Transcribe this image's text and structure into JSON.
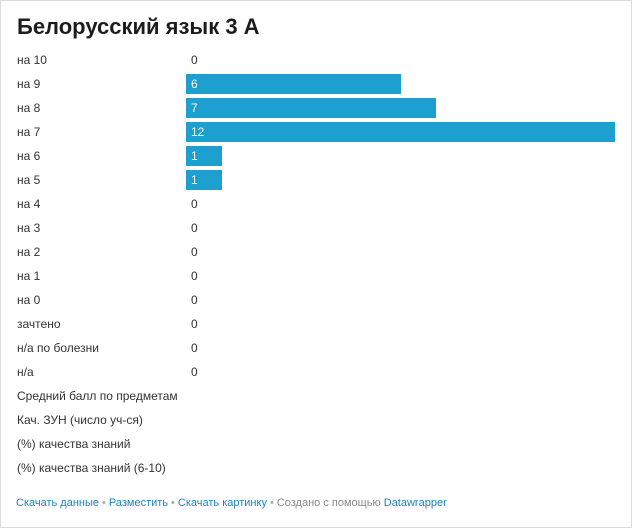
{
  "chart_data": {
    "type": "bar",
    "orientation": "horizontal",
    "title": "Белорусский язык 3 А",
    "categories": [
      "на 10",
      "на 9",
      "на 8",
      "на 7",
      "на 6",
      "на 5",
      "на 4",
      "на 3",
      "на 2",
      "на 1",
      "на 0",
      "зачтено",
      "н/а по болезни",
      "н/а",
      "Средний балл по предметам",
      "Кач. ЗУН (число уч-ся)",
      "(%) качества знаний",
      "(%) качества знаний (6-10)"
    ],
    "values": [
      0,
      6,
      7,
      12,
      1,
      1,
      0,
      0,
      0,
      0,
      0,
      0,
      0,
      0,
      null,
      null,
      null,
      null
    ],
    "xlim": [
      0,
      12
    ],
    "bar_color": "#1d9fcf",
    "grid": false,
    "legend": "none"
  },
  "footer": {
    "download_data": "Скачать данные",
    "embed": "Разместить",
    "download_image": "Скачать картинку",
    "created_with": "Создано с помощью",
    "datawrapper": "Datawrapper"
  },
  "colors": {
    "bar": "#1d9fcf",
    "link": "#1a84b8"
  }
}
